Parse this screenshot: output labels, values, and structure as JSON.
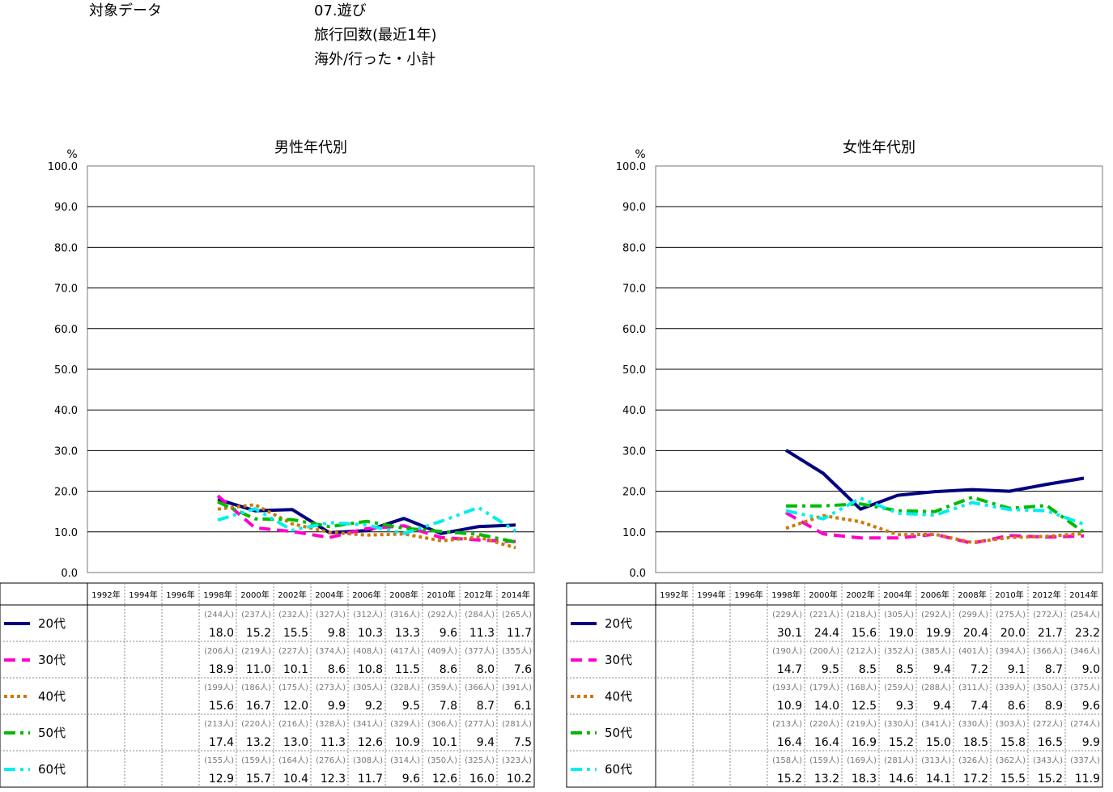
{
  "header": {
    "label": "対象データ",
    "lines": [
      "07.遊び",
      "旅行回数(最近1年)",
      "海外/行った・小計"
    ]
  },
  "chart_data": [
    {
      "type": "line",
      "title": "男性年代別",
      "ylabel": "%",
      "ylim": [
        0,
        100
      ],
      "yticks": [
        "0.0",
        "10.0",
        "20.0",
        "30.0",
        "40.0",
        "50.0",
        "60.0",
        "70.0",
        "80.0",
        "90.0",
        "100.0"
      ],
      "grid": true,
      "legend": "table-left",
      "x": [
        "1992年",
        "1994年",
        "1996年",
        "1998年",
        "2000年",
        "2002年",
        "2004年",
        "2006年",
        "2008年",
        "2010年",
        "2012年",
        "2014年"
      ],
      "series": [
        {
          "name": "20代",
          "color": "#000080",
          "dash": "solid",
          "values": [
            null,
            null,
            null,
            18.0,
            15.2,
            15.5,
            9.8,
            10.3,
            13.3,
            9.6,
            11.3,
            11.7
          ],
          "counts": [
            null,
            null,
            null,
            "(244人)",
            "(237人)",
            "(232人)",
            "(327人)",
            "(312人)",
            "(316人)",
            "(292人)",
            "(284人)",
            "(265人)"
          ]
        },
        {
          "name": "30代",
          "color": "#ff00cc",
          "dash": "dash",
          "values": [
            null,
            null,
            null,
            18.9,
            11.0,
            10.1,
            8.6,
            10.8,
            11.5,
            8.6,
            8.0,
            7.6
          ],
          "counts": [
            null,
            null,
            null,
            "(206人)",
            "(219人)",
            "(227人)",
            "(374人)",
            "(408人)",
            "(417人)",
            "(409人)",
            "(377人)",
            "(355人)"
          ]
        },
        {
          "name": "40代",
          "color": "#cc7a00",
          "dash": "dot",
          "values": [
            null,
            null,
            null,
            15.6,
            16.7,
            12.0,
            9.9,
            9.2,
            9.5,
            7.8,
            8.7,
            6.1
          ],
          "counts": [
            null,
            null,
            null,
            "(199人)",
            "(186人)",
            "(175人)",
            "(273人)",
            "(305人)",
            "(328人)",
            "(359人)",
            "(366人)",
            "(391人)"
          ]
        },
        {
          "name": "50代",
          "color": "#00bb00",
          "dash": "dashdot",
          "values": [
            null,
            null,
            null,
            17.4,
            13.2,
            13.0,
            11.3,
            12.6,
            10.9,
            10.1,
            9.4,
            7.5
          ],
          "counts": [
            null,
            null,
            null,
            "(213人)",
            "(220人)",
            "(216人)",
            "(328人)",
            "(341人)",
            "(329人)",
            "(306人)",
            "(277人)",
            "(281人)"
          ]
        },
        {
          "name": "60代",
          "color": "#00eeee",
          "dash": "dashdotdot",
          "values": [
            null,
            null,
            null,
            12.9,
            15.7,
            10.4,
            12.3,
            11.7,
            9.6,
            12.6,
            16.0,
            10.2
          ],
          "counts": [
            null,
            null,
            null,
            "(155人)",
            "(159人)",
            "(164人)",
            "(276人)",
            "(308人)",
            "(314人)",
            "(350人)",
            "(325人)",
            "(323人)"
          ]
        }
      ]
    },
    {
      "type": "line",
      "title": "女性年代別",
      "ylabel": "%",
      "ylim": [
        0,
        100
      ],
      "yticks": [
        "0.0",
        "10.0",
        "20.0",
        "30.0",
        "40.0",
        "50.0",
        "60.0",
        "70.0",
        "80.0",
        "90.0",
        "100.0"
      ],
      "grid": true,
      "legend": "table-left",
      "x": [
        "1992年",
        "1994年",
        "1996年",
        "1998年",
        "2000年",
        "2002年",
        "2004年",
        "2006年",
        "2008年",
        "2010年",
        "2012年",
        "2014年"
      ],
      "series": [
        {
          "name": "20代",
          "color": "#000080",
          "dash": "solid",
          "values": [
            null,
            null,
            null,
            30.1,
            24.4,
            15.6,
            19.0,
            19.9,
            20.4,
            20.0,
            21.7,
            23.2
          ],
          "counts": [
            null,
            null,
            null,
            "(229人)",
            "(221人)",
            "(218人)",
            "(305人)",
            "(292人)",
            "(299人)",
            "(275人)",
            "(272人)",
            "(254人)"
          ]
        },
        {
          "name": "30代",
          "color": "#ff00cc",
          "dash": "dash",
          "values": [
            null,
            null,
            null,
            14.7,
            9.5,
            8.5,
            8.5,
            9.4,
            7.2,
            9.1,
            8.7,
            9.0
          ],
          "counts": [
            null,
            null,
            null,
            "(190人)",
            "(200人)",
            "(212人)",
            "(352人)",
            "(385人)",
            "(401人)",
            "(394人)",
            "(366人)",
            "(346人)"
          ]
        },
        {
          "name": "40代",
          "color": "#cc7a00",
          "dash": "dot",
          "values": [
            null,
            null,
            null,
            10.9,
            14.0,
            12.5,
            9.3,
            9.4,
            7.4,
            8.6,
            8.9,
            9.6
          ],
          "counts": [
            null,
            null,
            null,
            "(193人)",
            "(179人)",
            "(168人)",
            "(259人)",
            "(288人)",
            "(311人)",
            "(339人)",
            "(350人)",
            "(375人)"
          ]
        },
        {
          "name": "50代",
          "color": "#00bb00",
          "dash": "dashdot",
          "values": [
            null,
            null,
            null,
            16.4,
            16.4,
            16.9,
            15.2,
            15.0,
            18.5,
            15.8,
            16.5,
            9.9
          ],
          "counts": [
            null,
            null,
            null,
            "(213人)",
            "(220人)",
            "(219人)",
            "(330人)",
            "(341人)",
            "(330人)",
            "(303人)",
            "(272人)",
            "(274人)"
          ]
        },
        {
          "name": "60代",
          "color": "#00eeee",
          "dash": "dashdotdot",
          "values": [
            null,
            null,
            null,
            15.2,
            13.2,
            18.3,
            14.6,
            14.1,
            17.2,
            15.5,
            15.2,
            11.9
          ],
          "counts": [
            null,
            null,
            null,
            "(158人)",
            "(159人)",
            "(169人)",
            "(281人)",
            "(313人)",
            "(326人)",
            "(362人)",
            "(343人)",
            "(337人)"
          ]
        }
      ]
    }
  ]
}
